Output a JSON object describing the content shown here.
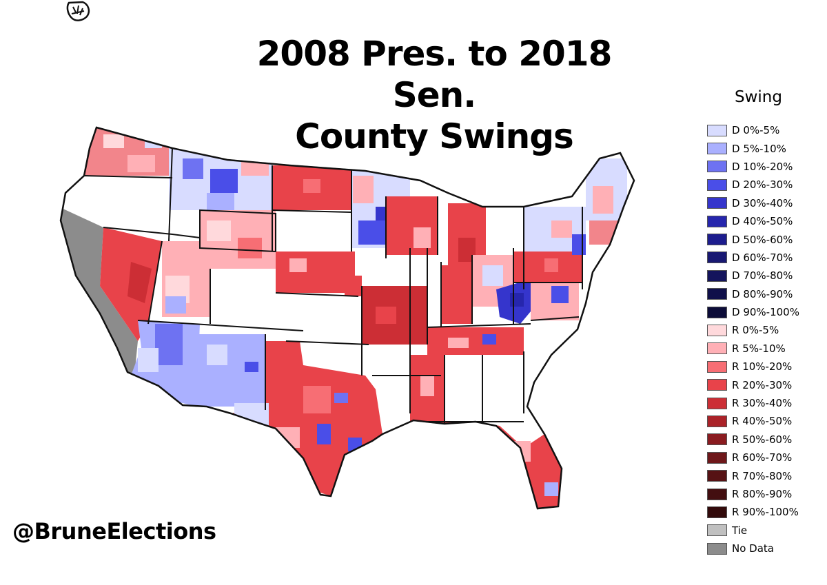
{
  "title": {
    "line1": "2008 Pres. to 2018 Sen.",
    "line2": "County Swings"
  },
  "credit": "@BruneElections",
  "legend": {
    "title": "Swing",
    "items": [
      {
        "label": "D 0%-5%",
        "color": "#d8dcff"
      },
      {
        "label": "D 5%-10%",
        "color": "#aab0ff"
      },
      {
        "label": "D 10%-20%",
        "color": "#6e72f2"
      },
      {
        "label": "D 20%-30%",
        "color": "#4a4ee8"
      },
      {
        "label": "D 30%-40%",
        "color": "#3535cc"
      },
      {
        "label": "D 40%-50%",
        "color": "#2626ad"
      },
      {
        "label": "D 50%-60%",
        "color": "#1d1d8e"
      },
      {
        "label": "D 60%-70%",
        "color": "#181872"
      },
      {
        "label": "D 70%-80%",
        "color": "#14145c"
      },
      {
        "label": "D 80%-90%",
        "color": "#10104a"
      },
      {
        "label": "D 90%-100%",
        "color": "#0c0c38"
      },
      {
        "label": "R 0%-5%",
        "color": "#ffd9dc"
      },
      {
        "label": "R 5%-10%",
        "color": "#ffb0b6"
      },
      {
        "label": "R 10%-20%",
        "color": "#f76e74"
      },
      {
        "label": "R 20%-30%",
        "color": "#e8434a"
      },
      {
        "label": "R 30%-40%",
        "color": "#cc2e35"
      },
      {
        "label": "R 40%-50%",
        "color": "#aa2228"
      },
      {
        "label": "R 50%-60%",
        "color": "#8a1b20"
      },
      {
        "label": "R 60%-70%",
        "color": "#6e171a"
      },
      {
        "label": "R 70%-80%",
        "color": "#561214"
      },
      {
        "label": "R 80%-90%",
        "color": "#430e10"
      },
      {
        "label": "R 90%-100%",
        "color": "#320a0b"
      },
      {
        "label": "Tie",
        "color": "#c0c0c0"
      },
      {
        "label": "No Data",
        "color": "#8c8c8c"
      }
    ]
  },
  "colors": {
    "no_data": "#8c8c8c",
    "white": "#ffffff",
    "border": "#111111"
  }
}
